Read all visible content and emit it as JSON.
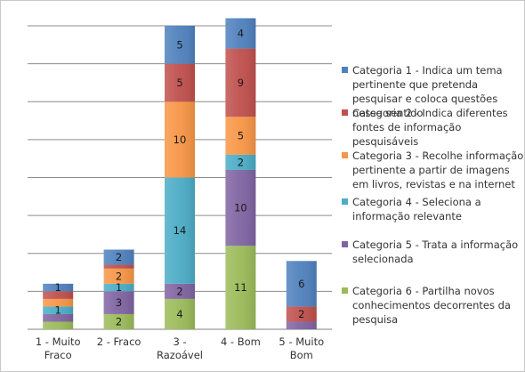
{
  "chart_data": {
    "type": "bar",
    "stacked": true,
    "grid": true,
    "legend_position": "right",
    "categories": [
      [
        "1 - Muito",
        "Fraco"
      ],
      [
        "2 - Fraco"
      ],
      [
        "3 -",
        "Razoável"
      ],
      [
        "4 - Bom"
      ],
      [
        "5 - Muito",
        "Bom"
      ]
    ],
    "ylim": [
      0,
      40
    ],
    "series": [
      {
        "name": "Categoria 6 - Partilha novos conhecimentos decorrentes da pesquisa",
        "color": "#9bbb59",
        "values": [
          1,
          2,
          4,
          11,
          0
        ],
        "labels": [
          "",
          "2",
          "4",
          "11",
          ""
        ]
      },
      {
        "name": "Categoria 5 - Trata a informação selecionada",
        "color": "#8064a2",
        "values": [
          1,
          3,
          2,
          10,
          1
        ],
        "labels": [
          "",
          "3",
          "2",
          "10",
          ""
        ]
      },
      {
        "name": "Categoria 4 - Seleciona a informação relevante",
        "color": "#4bacc6",
        "values": [
          1,
          1,
          14,
          2,
          0
        ],
        "labels": [
          "1",
          "1",
          "14",
          "2",
          ""
        ]
      },
      {
        "name": "Categoria 3 - Recolhe informação pertinente a partir de imagens em livros, revistas e na internet",
        "color": "#f79646",
        "values": [
          1,
          2,
          10,
          5,
          0
        ],
        "labels": [
          "",
          "2",
          "10",
          "5",
          ""
        ]
      },
      {
        "name": "Categoria 2 - Indica diferentes fontes de informação pesquisáveis",
        "color": "#c0504d",
        "values": [
          1,
          0.5,
          5,
          9,
          2
        ],
        "labels": [
          "",
          "",
          "5",
          "9",
          "2"
        ]
      },
      {
        "name": "Categoria 1 - Indica um tema pertinente que pretenda pesquisar e coloca questões nesse sentido",
        "color": "#4f81bd",
        "values": [
          1,
          2,
          5,
          4,
          6
        ],
        "labels": [
          "1",
          "2",
          "5",
          "4",
          "6"
        ]
      }
    ]
  },
  "legend": {
    "items": [
      {
        "label": "Categoria 1 - Indica um tema pertinente que pretenda pesquisar e coloca questões nesse sentido",
        "color": "#4f81bd"
      },
      {
        "label": "Categoria 2 - Indica diferentes fontes de informação pesquisáveis",
        "color": "#c0504d"
      },
      {
        "label": "Categoria 3 - Recolhe informação pertinente a partir de imagens em livros, revistas e na internet",
        "color": "#f79646"
      },
      {
        "label": "Categoria 4 - Seleciona a informação relevante",
        "color": "#4bacc6"
      },
      {
        "label": "Categoria 5 - Trata a informação selecionada",
        "color": "#8064a2"
      },
      {
        "label": "Categoria 6 - Partilha novos conhecimentos decorrentes da pesquisa",
        "color": "#9bbb59"
      }
    ]
  }
}
